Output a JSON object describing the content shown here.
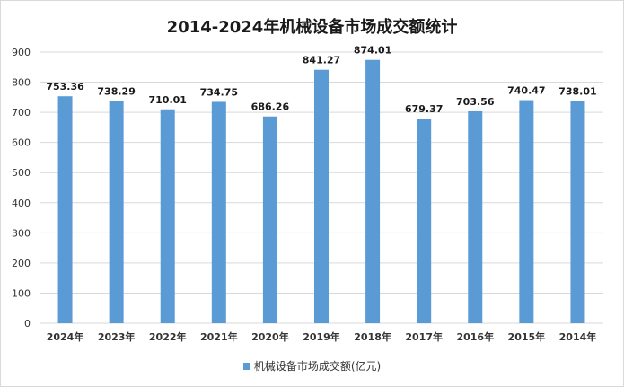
{
  "chart_data": {
    "type": "bar",
    "title": "2014-2024年机械设备市场成交额统计",
    "categories": [
      "2024年",
      "2023年",
      "2022年",
      "2021年",
      "2020年",
      "2019年",
      "2018年",
      "2017年",
      "2016年",
      "2015年",
      "2014年"
    ],
    "series": [
      {
        "name": "机械设备市场成交额(亿元)",
        "values": [
          753.36,
          738.29,
          710.01,
          734.75,
          686.26,
          841.27,
          874.01,
          679.37,
          703.56,
          740.47,
          738.01
        ]
      }
    ],
    "value_labels": [
      "753.36",
      "738.29",
      "710.01",
      "734.75",
      "686.26",
      "841.27",
      "874.01",
      "679.37",
      "703.56",
      "740.47",
      "738.01"
    ],
    "ylim": [
      0,
      900
    ],
    "yticks": [
      0,
      100,
      200,
      300,
      400,
      500,
      600,
      700,
      800,
      900
    ],
    "grid": true,
    "legend_position": "bottom",
    "bar_color": "#5b9bd5",
    "grid_color": "#d9d9d9"
  }
}
